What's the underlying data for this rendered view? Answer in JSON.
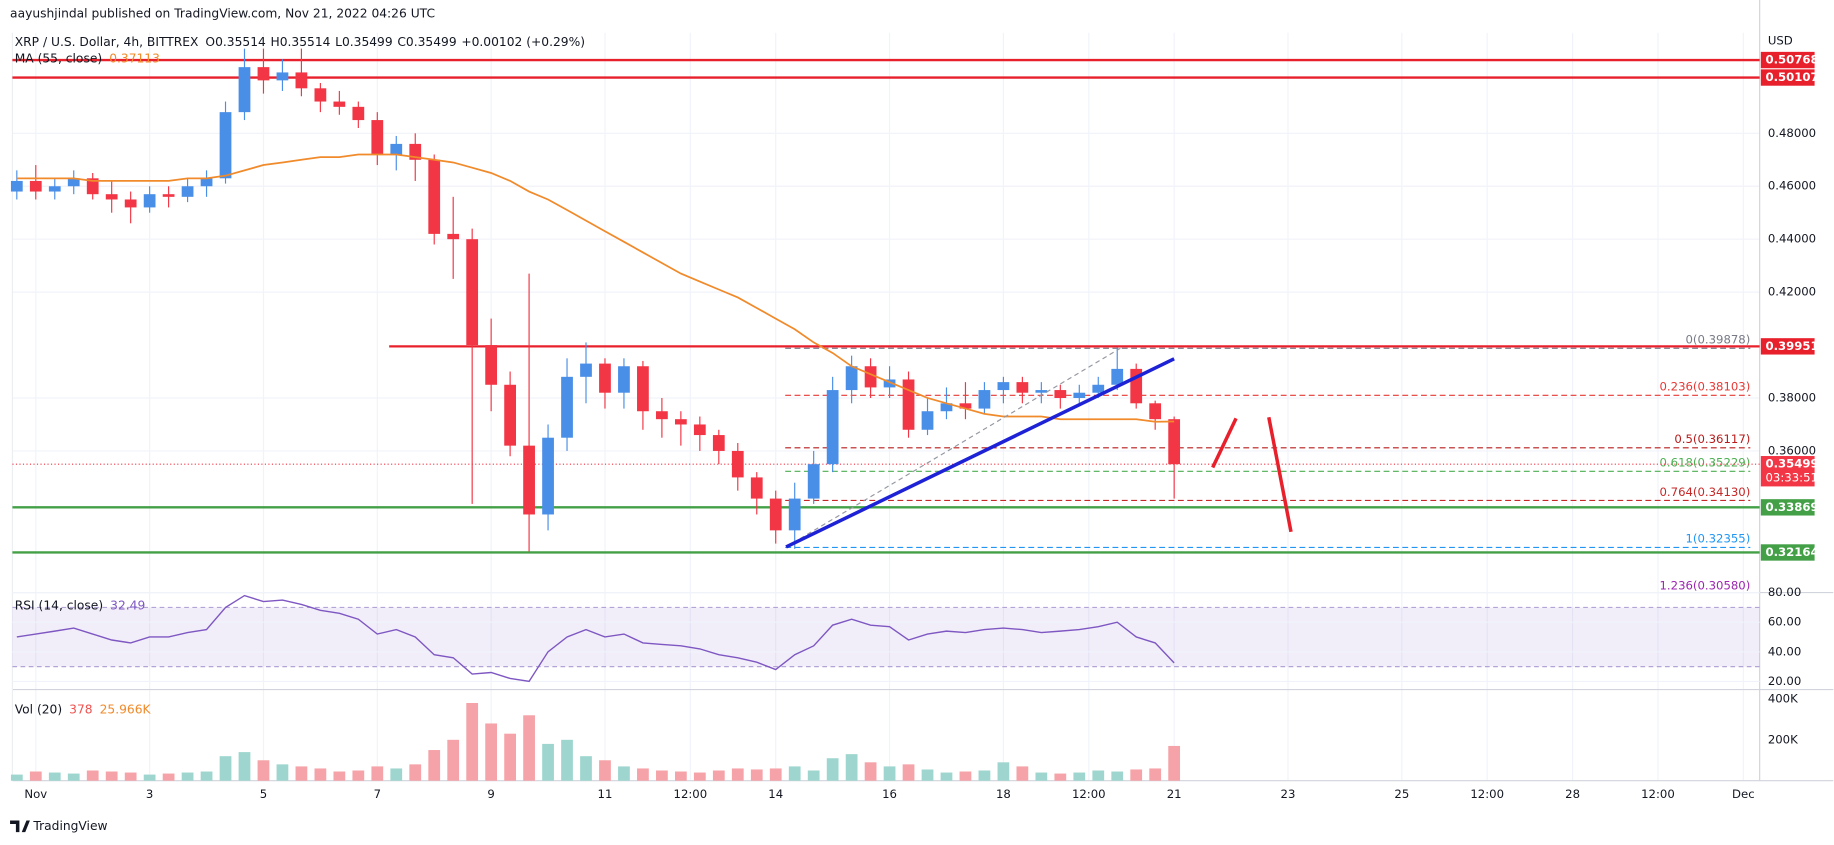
{
  "publisher": "aayushjindal published on TradingView.com, Nov 21, 2022 04:26 UTC",
  "brand": "TradingView",
  "chart_data": {
    "type": "candlestick",
    "title": "XRP / U.S. Dollar, 4h, BITTREX",
    "ohlc_text": [
      "O0.35514",
      "H0.35514",
      "L0.35499",
      "C0.35499",
      "+0.00102 (+0.29%)"
    ],
    "currency": "USD",
    "up_color": "#4a8fe7",
    "down_color": "#f23645",
    "x": [
      "2022-10-31T16:00Z",
      "2022-11-01T00:00Z",
      "2022-11-01T08:00Z",
      "2022-11-01T16:00Z",
      "2022-11-02T00:00Z",
      "2022-11-02T08:00Z",
      "2022-11-02T16:00Z",
      "2022-11-03T00:00Z",
      "2022-11-03T08:00Z",
      "2022-11-03T16:00Z",
      "2022-11-04T00:00Z",
      "2022-11-04T08:00Z",
      "2022-11-04T16:00Z",
      "2022-11-05T00:00Z",
      "2022-11-05T08:00Z",
      "2022-11-05T16:00Z",
      "2022-11-06T00:00Z",
      "2022-11-06T08:00Z",
      "2022-11-06T16:00Z",
      "2022-11-07T00:00Z",
      "2022-11-07T08:00Z",
      "2022-11-07T16:00Z",
      "2022-11-08T00:00Z",
      "2022-11-08T08:00Z",
      "2022-11-08T16:00Z",
      "2022-11-09T00:00Z",
      "2022-11-09T08:00Z",
      "2022-11-09T16:00Z",
      "2022-11-10T00:00Z",
      "2022-11-10T08:00Z",
      "2022-11-10T16:00Z",
      "2022-11-11T00:00Z",
      "2022-11-11T08:00Z",
      "2022-11-11T16:00Z",
      "2022-11-12T00:00Z",
      "2022-11-12T08:00Z",
      "2022-11-12T16:00Z",
      "2022-11-13T00:00Z",
      "2022-11-13T08:00Z",
      "2022-11-13T16:00Z",
      "2022-11-14T00:00Z",
      "2022-11-14T08:00Z",
      "2022-11-14T16:00Z",
      "2022-11-15T00:00Z",
      "2022-11-15T08:00Z",
      "2022-11-15T16:00Z",
      "2022-11-16T00:00Z",
      "2022-11-16T08:00Z",
      "2022-11-16T16:00Z",
      "2022-11-17T00:00Z",
      "2022-11-17T08:00Z",
      "2022-11-17T16:00Z",
      "2022-11-18T00:00Z",
      "2022-11-18T08:00Z",
      "2022-11-18T16:00Z",
      "2022-11-19T00:00Z",
      "2022-11-19T08:00Z",
      "2022-11-19T16:00Z",
      "2022-11-20T00:00Z",
      "2022-11-20T08:00Z",
      "2022-11-20T16:00Z",
      "2022-11-21T00:00Z"
    ],
    "open": [
      0.458,
      0.462,
      0.458,
      0.46,
      0.463,
      0.457,
      0.455,
      0.452,
      0.457,
      0.456,
      0.46,
      0.463,
      0.488,
      0.505,
      0.5,
      0.503,
      0.497,
      0.492,
      0.49,
      0.485,
      0.472,
      0.476,
      0.47,
      0.442,
      0.44,
      0.4,
      0.385,
      0.362,
      0.336,
      0.365,
      0.388,
      0.393,
      0.382,
      0.392,
      0.375,
      0.372,
      0.37,
      0.366,
      0.36,
      0.35,
      0.342,
      0.33,
      0.342,
      0.355,
      0.383,
      0.392,
      0.384,
      0.387,
      0.368,
      0.375,
      0.378,
      0.376,
      0.383,
      0.386,
      0.382,
      0.383,
      0.38,
      0.382,
      0.385,
      0.391,
      0.378,
      0.372
    ],
    "high": [
      0.466,
      0.468,
      0.463,
      0.466,
      0.465,
      0.462,
      0.458,
      0.46,
      0.46,
      0.463,
      0.466,
      0.492,
      0.512,
      0.512,
      0.508,
      0.512,
      0.499,
      0.496,
      0.492,
      0.488,
      0.479,
      0.48,
      0.472,
      0.456,
      0.444,
      0.41,
      0.39,
      0.427,
      0.37,
      0.395,
      0.401,
      0.395,
      0.395,
      0.394,
      0.38,
      0.375,
      0.373,
      0.368,
      0.363,
      0.352,
      0.345,
      0.348,
      0.36,
      0.388,
      0.396,
      0.395,
      0.392,
      0.39,
      0.38,
      0.384,
      0.386,
      0.386,
      0.388,
      0.388,
      0.386,
      0.385,
      0.385,
      0.388,
      0.399,
      0.393,
      0.379,
      0.373
    ],
    "low": [
      0.455,
      0.455,
      0.455,
      0.457,
      0.455,
      0.45,
      0.446,
      0.45,
      0.452,
      0.454,
      0.456,
      0.461,
      0.485,
      0.495,
      0.496,
      0.494,
      0.488,
      0.487,
      0.482,
      0.468,
      0.466,
      0.462,
      0.438,
      0.425,
      0.34,
      0.375,
      0.358,
      0.322,
      0.33,
      0.36,
      0.378,
      0.376,
      0.376,
      0.368,
      0.365,
      0.362,
      0.36,
      0.355,
      0.345,
      0.336,
      0.325,
      0.323,
      0.34,
      0.352,
      0.378,
      0.38,
      0.38,
      0.365,
      0.366,
      0.372,
      0.372,
      0.374,
      0.378,
      0.378,
      0.378,
      0.376,
      0.377,
      0.38,
      0.383,
      0.376,
      0.368,
      0.342
    ],
    "close": [
      0.462,
      0.458,
      0.46,
      0.463,
      0.457,
      0.455,
      0.452,
      0.457,
      0.456,
      0.46,
      0.463,
      0.488,
      0.505,
      0.5,
      0.503,
      0.497,
      0.492,
      0.49,
      0.485,
      0.472,
      0.476,
      0.47,
      0.442,
      0.44,
      0.4,
      0.385,
      0.362,
      0.336,
      0.365,
      0.388,
      0.393,
      0.382,
      0.392,
      0.375,
      0.372,
      0.37,
      0.366,
      0.36,
      0.35,
      0.342,
      0.33,
      0.342,
      0.355,
      0.383,
      0.392,
      0.384,
      0.387,
      0.368,
      0.375,
      0.378,
      0.376,
      0.383,
      0.386,
      0.382,
      0.383,
      0.38,
      0.382,
      0.385,
      0.391,
      0.378,
      0.372,
      0.355
    ],
    "series": [
      {
        "name": "MA (55, close)",
        "color": "#f08a2a",
        "values": [
          0.463,
          0.463,
          0.463,
          0.463,
          0.462,
          0.462,
          0.462,
          0.462,
          0.462,
          0.463,
          0.463,
          0.464,
          0.466,
          0.468,
          0.469,
          0.47,
          0.471,
          0.471,
          0.472,
          0.472,
          0.472,
          0.471,
          0.47,
          0.469,
          0.467,
          0.465,
          0.462,
          0.458,
          0.455,
          0.451,
          0.447,
          0.443,
          0.439,
          0.435,
          0.431,
          0.427,
          0.424,
          0.421,
          0.418,
          0.414,
          0.41,
          0.406,
          0.401,
          0.397,
          0.392,
          0.389,
          0.386,
          0.383,
          0.38,
          0.378,
          0.376,
          0.374,
          0.373,
          0.373,
          0.373,
          0.372,
          0.372,
          0.372,
          0.372,
          0.372,
          0.371,
          0.37113
        ]
      }
    ],
    "xlim": [
      "2022-10-31T14:08Z",
      "2022-12-01T06:53Z"
    ],
    "xticks": [
      {
        "value": "2022-11-01T00:00Z",
        "label": "Nov"
      },
      {
        "value": "2022-11-03T00:00Z",
        "label": "3"
      },
      {
        "value": "2022-11-05T00:00Z",
        "label": "5"
      },
      {
        "value": "2022-11-07T00:00Z",
        "label": "7"
      },
      {
        "value": "2022-11-09T00:00Z",
        "label": "9"
      },
      {
        "value": "2022-11-11T00:00Z",
        "label": "11"
      },
      {
        "value": "2022-11-12T12:00Z",
        "label": "12:00"
      },
      {
        "value": "2022-11-14T00:00Z",
        "label": "14"
      },
      {
        "value": "2022-11-16T00:00Z",
        "label": "16"
      },
      {
        "value": "2022-11-18T00:00Z",
        "label": "18"
      },
      {
        "value": "2022-11-19T12:00Z",
        "label": "12:00"
      },
      {
        "value": "2022-11-21T00:00Z",
        "label": "21"
      },
      {
        "value": "2022-11-23T00:00Z",
        "label": "23"
      },
      {
        "value": "2022-11-25T00:00Z",
        "label": "25"
      },
      {
        "value": "2022-11-26T12:00Z",
        "label": "12:00"
      },
      {
        "value": "2022-11-28T00:00Z",
        "label": "28"
      },
      {
        "value": "2022-11-29T12:00Z",
        "label": "12:00"
      },
      {
        "value": "2022-12-01T00:00Z",
        "label": "Dec"
      }
    ],
    "ylim": [
      0.3065,
      0.518
    ],
    "yticks": [
      {
        "value": 0.36,
        "label": "0.36000"
      },
      {
        "value": 0.38,
        "label": "0.38000"
      },
      {
        "value": 0.42,
        "label": "0.42000"
      },
      {
        "value": 0.44,
        "label": "0.44000"
      },
      {
        "value": 0.46,
        "label": "0.46000"
      },
      {
        "value": 0.48,
        "label": "0.48000"
      }
    ],
    "grid": true,
    "levels": [
      {
        "value": 0.50768,
        "label": "0.50768",
        "color": "#e8202c"
      },
      {
        "value": 0.50107,
        "label": "0.50107",
        "color": "#e8202c"
      },
      {
        "value": 0.39951,
        "label": "0.39951",
        "color": "#e8202c",
        "start": "2022-11-07T05:00Z"
      },
      {
        "value": 0.33869,
        "label": "0.33869",
        "color": "#43a047"
      },
      {
        "value": 0.32164,
        "label": "0.32164",
        "color": "#43a047"
      }
    ],
    "last_price": {
      "value": 0.35499,
      "label": "0.35499",
      "countdown": "03:33:51",
      "color": "#f23645"
    },
    "fib": {
      "start": "2022-11-14T04:00Z",
      "levels": [
        {
          "value": 0.39878,
          "label": "0(0.39878)",
          "color": "#787b86"
        },
        {
          "value": 0.38103,
          "label": "0.236(0.38103)",
          "color": "#e53935"
        },
        {
          "value": 0.36117,
          "label": "0.5(0.36117)",
          "color": "#b71c1c"
        },
        {
          "value": 0.35229,
          "label": "0.618(0.35229)",
          "color": "#4caf50"
        },
        {
          "value": 0.3413,
          "label": "0.764(0.34130)",
          "color": "#c62828"
        },
        {
          "value": 0.32355,
          "label": "1(0.32355)",
          "color": "#2196f3"
        },
        {
          "value": 0.3058,
          "label": "1.236(0.30580)",
          "color": "#9c27b0"
        }
      ]
    },
    "rsi": {
      "name": "RSI (14, close)",
      "color": "#7e57c2",
      "values": [
        50,
        52,
        54,
        56,
        52,
        48,
        46,
        50,
        50,
        53,
        55,
        70,
        78,
        74,
        75,
        72,
        68,
        66,
        62,
        52,
        55,
        50,
        38,
        36,
        25,
        26,
        22,
        20,
        40,
        50,
        55,
        50,
        52,
        46,
        45,
        44,
        42,
        38,
        36,
        33,
        28,
        38,
        44,
        58,
        62,
        58,
        57,
        48,
        52,
        54,
        53,
        55,
        56,
        55,
        53,
        54,
        55,
        57,
        60,
        50,
        46,
        32.49
      ],
      "ylim": [
        14.5,
        83.2
      ],
      "yticks": [
        {
          "value": 20,
          "label": "20.00"
        },
        {
          "value": 40,
          "label": "40.00"
        },
        {
          "value": 60,
          "label": "60.00"
        },
        {
          "value": 80,
          "label": "80.00"
        }
      ],
      "band": [
        30,
        70
      ]
    },
    "volume": {
      "name": "Vol (20)",
      "legend": [
        "378",
        "25.966K"
      ],
      "up_color": "#9ed6cf",
      "down_color": "#f5a3a8",
      "values": [
        30000,
        45000,
        40000,
        35000,
        50000,
        45000,
        40000,
        30000,
        35000,
        40000,
        45000,
        120000,
        140000,
        100000,
        80000,
        70000,
        60000,
        45000,
        50000,
        70000,
        60000,
        80000,
        150000,
        200000,
        380000,
        280000,
        230000,
        320000,
        180000,
        200000,
        120000,
        100000,
        70000,
        60000,
        50000,
        45000,
        40000,
        50000,
        60000,
        55000,
        60000,
        70000,
        50000,
        110000,
        130000,
        90000,
        70000,
        80000,
        55000,
        40000,
        45000,
        50000,
        90000,
        70000,
        40000,
        35000,
        40000,
        50000,
        45000,
        55000,
        60000,
        170000
      ],
      "ylim": [
        0,
        428600
      ],
      "yticks": [
        {
          "value": 200000,
          "label": "200K"
        },
        {
          "value": 400000,
          "label": "400K"
        }
      ]
    }
  }
}
